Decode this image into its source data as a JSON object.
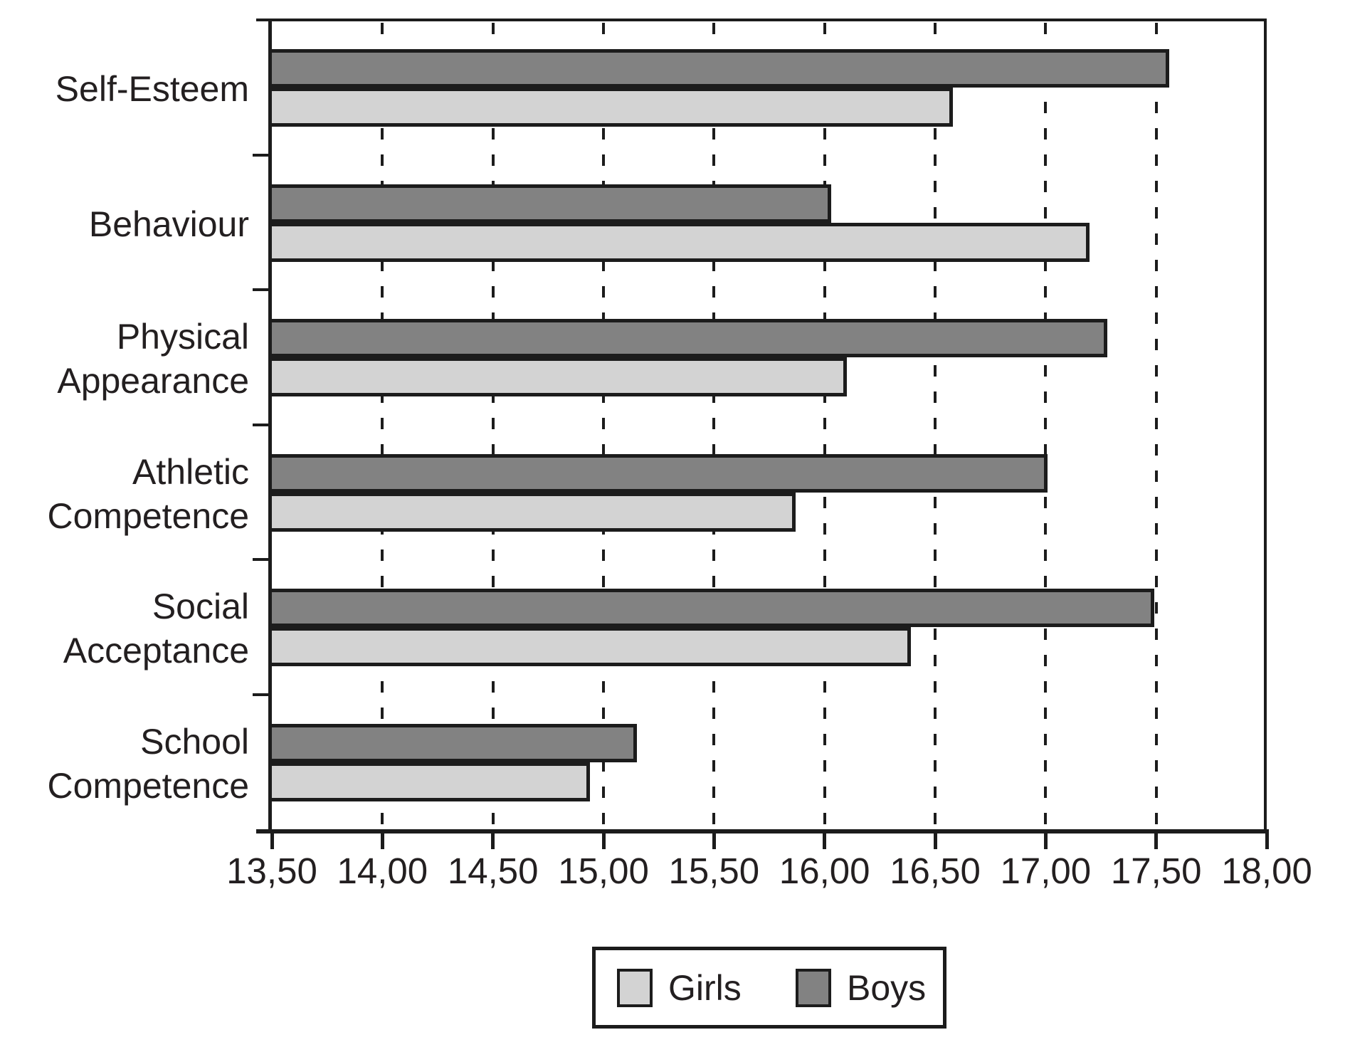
{
  "chart_data": {
    "type": "bar",
    "orientation": "horizontal",
    "title": "",
    "xlabel": "",
    "ylabel": "",
    "categories": [
      "Self-Esteem",
      "Behaviour",
      "Physical Appearance",
      "Athletic Competence",
      "Social Acceptance",
      "School Competence"
    ],
    "category_lines": [
      [
        "Self-Esteem"
      ],
      [
        "Behaviour"
      ],
      [
        "Physical",
        "Appearance"
      ],
      [
        "Athletic",
        "Competence"
      ],
      [
        "Social",
        "Acceptance"
      ],
      [
        "School",
        "Competence"
      ]
    ],
    "series": [
      {
        "name": "Girls",
        "color": "#d3d3d3",
        "values": [
          16.58,
          17.2,
          16.1,
          15.87,
          16.39,
          14.94
        ]
      },
      {
        "name": "Boys",
        "color": "#828282",
        "values": [
          17.56,
          16.03,
          17.28,
          17.01,
          17.49,
          15.15
        ]
      }
    ],
    "bar_order_top_to_bottom": [
      "Boys",
      "Girls"
    ],
    "xlim": [
      13.5,
      18.0
    ],
    "tick_step": 0.5,
    "tick_values": [
      13.5,
      14.0,
      14.5,
      15.0,
      15.5,
      16.0,
      16.5,
      17.0,
      17.5,
      18.0
    ],
    "tick_labels": [
      "13,50",
      "14,00",
      "14,50",
      "15,00",
      "15,50",
      "16,00",
      "16,50",
      "17,00",
      "17,50",
      "18,00"
    ],
    "grid": "dashed-vertical-at-interior-ticks",
    "legend": {
      "position": "bottom-center",
      "entries": [
        "Girls",
        "Boys"
      ]
    }
  },
  "colors": {
    "background": "#ffffff",
    "axis_and_borders": "#1c1c1c",
    "text": "#231f20",
    "girls_fill": "#d3d3d3",
    "boys_fill": "#828282"
  }
}
